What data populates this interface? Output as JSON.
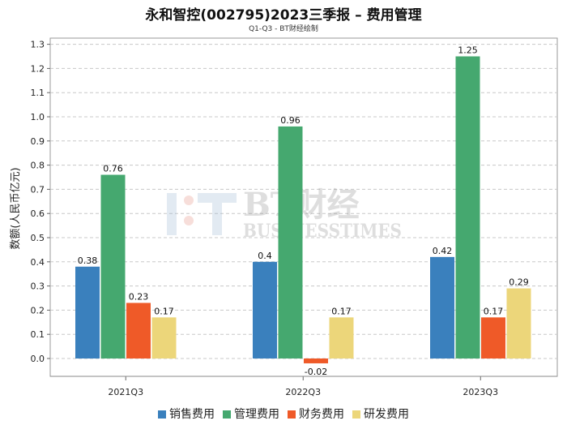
{
  "title": "永和智控(002795)2023三季报 – 费用管理",
  "subtitle": "Q1-Q3 - BT财经绘制",
  "watermark": {
    "main": "BT财经",
    "sub": "BUSINESSTIMES"
  },
  "chart_data": {
    "type": "bar",
    "title": "永和智控(002795)2023三季报 – 费用管理",
    "subtitle": "Q1-Q3 - BT财经绘制",
    "xlabel": "",
    "ylabel": "数额(人民币亿元)",
    "ylim": [
      -0.1,
      1.3
    ],
    "yticks": [
      "0.0",
      "0.1",
      "0.2",
      "0.3",
      "0.4",
      "0.5",
      "0.6",
      "0.7",
      "0.8",
      "0.9",
      "1.0",
      "1.1",
      "1.2",
      "1.3"
    ],
    "grid": true,
    "legend_position": "bottom",
    "categories": [
      "2021Q3",
      "2022Q3",
      "2023Q3"
    ],
    "series": [
      {
        "name": "销售费用",
        "color": "#3a80bd",
        "values": [
          0.38,
          0.4,
          0.42
        ],
        "labels": [
          "0.38",
          "0.4",
          "0.42"
        ]
      },
      {
        "name": "管理费用",
        "color": "#45a86f",
        "values": [
          0.76,
          0.96,
          1.25
        ],
        "labels": [
          "0.76",
          "0.96",
          "1.25"
        ]
      },
      {
        "name": "财务费用",
        "color": "#ef5a28",
        "values": [
          0.23,
          -0.02,
          0.17
        ],
        "labels": [
          "0.23",
          "-0.02",
          "0.17"
        ]
      },
      {
        "name": "研发费用",
        "color": "#ecd67a",
        "values": [
          0.17,
          0.17,
          0.29
        ],
        "labels": [
          "0.17",
          "0.17",
          "0.29"
        ]
      }
    ]
  }
}
